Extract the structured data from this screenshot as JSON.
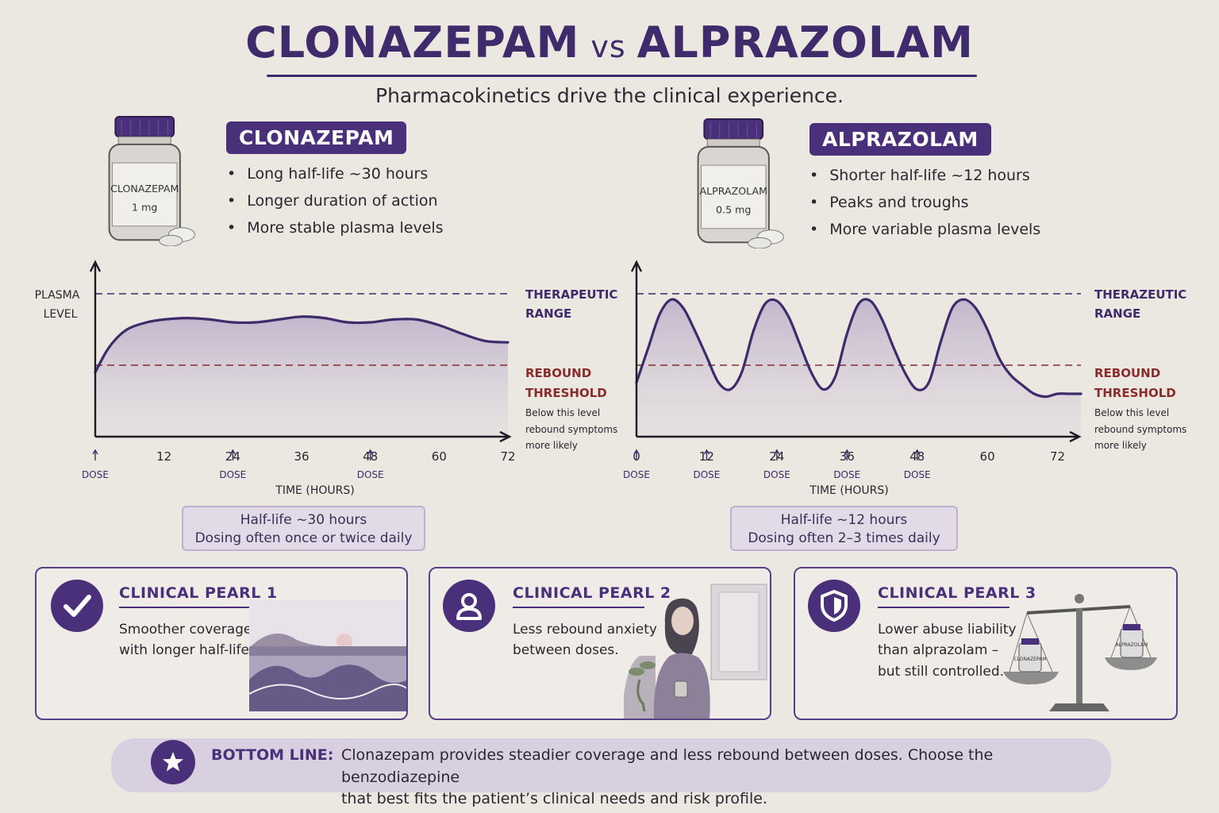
{
  "header": {
    "title_left": "CLONAZEPAM",
    "title_vs": "vs",
    "title_right": "ALPRAZOLAM",
    "subtitle": "Pharmacokinetics drive the clinical experience."
  },
  "left_drug": {
    "label": "CLONAZEPAM",
    "bottle_name": "CLONAZEPAM",
    "bottle_dose": "1 mg",
    "bullets": [
      "Long half-life ~30 hours",
      "Longer duration of action",
      "More stable plasma levels"
    ],
    "summary_line1": "Half-life ~30 hours",
    "summary_line2": "Dosing often once or twice daily"
  },
  "right_drug": {
    "label": "ALPRAZOLAM",
    "bottle_name": "ALPRAZOLAM",
    "bottle_dose": "0.5 mg",
    "bullets": [
      "Shorter half-life ~12 hours",
      "Peaks and troughs",
      "More variable plasma levels"
    ],
    "summary_line1": "Half-life ~12 hours",
    "summary_line2": "Dosing often 2–3 times daily"
  },
  "chart_data": [
    {
      "type": "line",
      "ylabel_line1": "PLASMA",
      "ylabel_line2": "LEVEL",
      "xlabel": "TIME (HOURS)",
      "xticks": [
        12,
        24,
        36,
        48,
        60,
        72
      ],
      "xlim": [
        0,
        72
      ],
      "therapeutic_label_line1": "THERAPEUTIC",
      "therapeutic_label_line2": "RANGE",
      "rebound_label_line1": "REBOUND",
      "rebound_label_line2": "THRESHOLD",
      "rebound_note_line1": "Below this level",
      "rebound_note_line2": "rebound symptoms",
      "rebound_note_line3": "more likely",
      "dose_label": "DOSE",
      "dose_times": [
        0,
        24,
        48
      ],
      "therapeutic_level": 1.0,
      "rebound_level": 0.5,
      "series": [
        {
          "x": [
            0,
            2,
            4,
            6,
            9,
            12,
            16,
            20,
            24,
            28,
            32,
            36,
            40,
            44,
            48,
            52,
            56,
            60,
            64,
            68,
            72
          ],
          "y": [
            0.45,
            0.6,
            0.7,
            0.76,
            0.8,
            0.82,
            0.83,
            0.82,
            0.8,
            0.8,
            0.82,
            0.84,
            0.83,
            0.8,
            0.8,
            0.82,
            0.82,
            0.78,
            0.72,
            0.67,
            0.66
          ]
        }
      ]
    },
    {
      "type": "line",
      "xlabel": "TIME (HOURS)",
      "xticks": [
        0,
        12,
        24,
        36,
        48,
        60,
        72
      ],
      "xlim": [
        0,
        76
      ],
      "therapeutic_label_line1": "THERAZEUTIC",
      "therapeutic_label_line2": "RANGE",
      "rebound_label_line1": "REBOUND",
      "rebound_label_line2": "THRESHOLD",
      "rebound_note_line1": "Below this level",
      "rebound_note_line2": "rebound symptoms",
      "rebound_note_line3": "more likely",
      "dose_label": "DOSE",
      "dose_times": [
        0,
        12,
        24,
        36,
        48
      ],
      "therapeutic_level": 1.0,
      "rebound_level": 0.5,
      "series": [
        {
          "x": [
            0,
            2,
            4,
            6,
            8,
            10,
            12,
            14,
            16,
            18,
            20,
            22,
            24,
            26,
            28,
            30,
            32,
            34,
            36,
            38,
            40,
            42,
            44,
            46,
            48,
            50,
            52,
            54,
            56,
            58,
            60,
            62,
            64,
            66,
            68,
            70,
            72,
            74,
            76
          ],
          "y": [
            0.38,
            0.62,
            0.86,
            0.96,
            0.9,
            0.74,
            0.56,
            0.38,
            0.33,
            0.45,
            0.74,
            0.93,
            0.95,
            0.84,
            0.64,
            0.44,
            0.33,
            0.42,
            0.72,
            0.93,
            0.95,
            0.82,
            0.62,
            0.44,
            0.33,
            0.38,
            0.66,
            0.9,
            0.96,
            0.9,
            0.75,
            0.55,
            0.43,
            0.36,
            0.3,
            0.28,
            0.3,
            0.3,
            0.3
          ]
        }
      ]
    }
  ],
  "pearls": [
    {
      "title": "CLINICAL PEARL 1",
      "line1": "Smoother coverage",
      "line2": "with longer half-life."
    },
    {
      "title": "CLINICAL PEARL 2",
      "line1": "Less rebound anxiety",
      "line2": "between doses."
    },
    {
      "title": "CLINICAL PEARL 3",
      "line1": "Lower abuse liability",
      "line2": "than alprazolam –",
      "line3": "but still controlled."
    }
  ],
  "scale_labels": {
    "left_vial": "CLONAZEPAM",
    "right_vial": "ALPRAZOLAM"
  },
  "bottom": {
    "label": "BOTTOM LINE:",
    "line1": "Clonazepam provides steadier coverage and less rebound between doses. Choose the benzodiazepine",
    "line2": "that best fits the patient’s clinical needs and risk profile."
  },
  "colors": {
    "accent": "#4a2f7a",
    "rebound": "#8a2b2b",
    "background": "#ebe7e1"
  },
  "icons": {
    "pearl1": "check-icon",
    "pearl2": "person-icon",
    "pearl3": "shield-icon",
    "bottom": "star-icon"
  }
}
